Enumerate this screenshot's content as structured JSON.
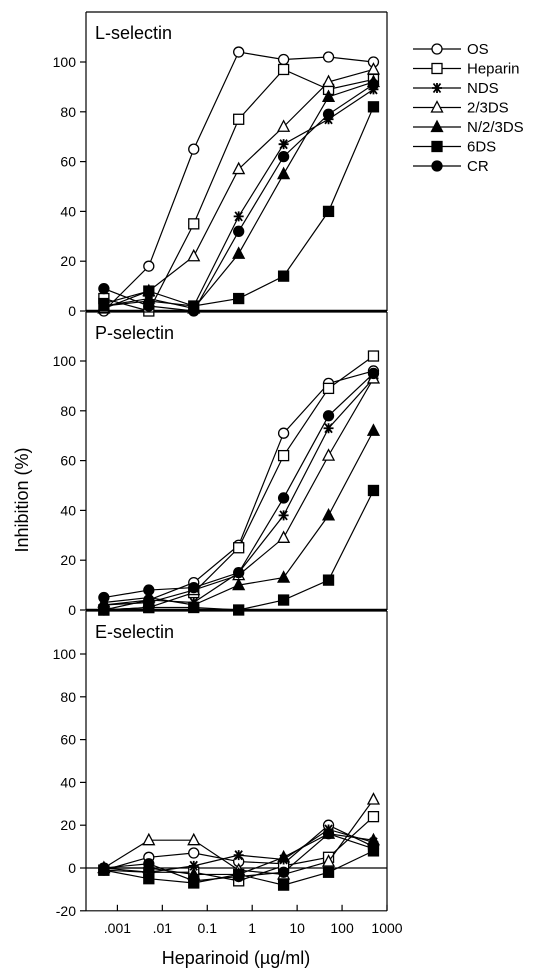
{
  "chart_data": {
    "type": "line",
    "xscale": "log",
    "xlim": [
      0.0002,
      1000
    ],
    "xlabel": "Heparinoid (µg/ml)",
    "ylabel": "Inhibition (%)",
    "xticks": [
      {
        "value": 0.001,
        "label": ".001"
      },
      {
        "value": 0.01,
        "label": ".01"
      },
      {
        "value": 0.1,
        "label": "0.1"
      },
      {
        "value": 1,
        "label": "1"
      },
      {
        "value": 10,
        "label": "10"
      },
      {
        "value": 100,
        "label": "100"
      },
      {
        "value": 1000,
        "label": "1000"
      }
    ],
    "legend": {
      "position": "top-right",
      "entries": [
        {
          "name": "OS",
          "marker": "circle",
          "filled": false
        },
        {
          "name": "Heparin",
          "marker": "square",
          "filled": false
        },
        {
          "name": "NDS",
          "marker": "star",
          "filled": true
        },
        {
          "name": "2/3DS",
          "marker": "triangle",
          "filled": false
        },
        {
          "name": "N/2/3DS",
          "marker": "triangle",
          "filled": true
        },
        {
          "name": "6DS",
          "marker": "square",
          "filled": true
        },
        {
          "name": "CR",
          "marker": "circle",
          "filled": true
        }
      ]
    },
    "panels": [
      {
        "title": "L-selectin",
        "ylim": [
          0,
          110
        ],
        "yticks": [
          0,
          20,
          40,
          60,
          80,
          100
        ],
        "x": [
          0.0005,
          0.005,
          0.05,
          0.5,
          5,
          50,
          500
        ],
        "series": [
          {
            "name": "OS",
            "values": [
              0,
              18,
              65,
              104,
              101,
              102,
              100
            ]
          },
          {
            "name": "Heparin",
            "values": [
              5,
              0,
              35,
              77,
              97,
              89,
              93
            ]
          },
          {
            "name": "NDS",
            "values": [
              2,
              4,
              2,
              38,
              67,
              77,
              89
            ]
          },
          {
            "name": "2/3DS",
            "values": [
              1,
              8,
              22,
              57,
              74,
              92,
              97
            ]
          },
          {
            "name": "N/2/3DS",
            "values": [
              2,
              5,
              1,
              23,
              55,
              86,
              92
            ]
          },
          {
            "name": "6DS",
            "values": [
              3,
              8,
              2,
              5,
              14,
              40,
              82
            ]
          },
          {
            "name": "CR",
            "values": [
              9,
              2,
              0,
              32,
              62,
              79,
              91
            ]
          }
        ]
      },
      {
        "title": "P-selectin",
        "ylim": [
          0,
          110
        ],
        "yticks": [
          0,
          20,
          40,
          60,
          80,
          100
        ],
        "x": [
          0.0005,
          0.005,
          0.05,
          0.5,
          5,
          50,
          500
        ],
        "series": [
          {
            "name": "OS",
            "values": [
              0,
              4,
              11,
              26,
              71,
              91,
              96
            ]
          },
          {
            "name": "Heparin",
            "values": [
              0,
              1,
              7,
              25,
              62,
              89,
              102
            ]
          },
          {
            "name": "NDS",
            "values": [
              2,
              4,
              3,
              15,
              38,
              73,
              93
            ]
          },
          {
            "name": "2/3DS",
            "values": [
              2,
              3,
              8,
              14,
              29,
              62,
              93
            ]
          },
          {
            "name": "N/2/3DS",
            "values": [
              3,
              5,
              2,
              10,
              13,
              38,
              72
            ]
          },
          {
            "name": "6DS",
            "values": [
              0,
              1,
              1,
              0,
              4,
              12,
              48
            ]
          },
          {
            "name": "CR",
            "values": [
              5,
              8,
              9,
              15,
              45,
              78,
              95
            ]
          }
        ]
      },
      {
        "title": "E-selectin",
        "ylim": [
          -20,
          110
        ],
        "yticks": [
          -20,
          0,
          20,
          40,
          60,
          80,
          100
        ],
        "x": [
          0.0005,
          0.005,
          0.05,
          0.5,
          5,
          50,
          500
        ],
        "series": [
          {
            "name": "OS",
            "values": [
              -1,
              5,
              7,
              3,
              2,
              20,
              10
            ]
          },
          {
            "name": "Heparin",
            "values": [
              -1,
              -2,
              -2,
              -6,
              1,
              5,
              24
            ]
          },
          {
            "name": "NDS",
            "values": [
              0,
              -2,
              1,
              6,
              4,
              18,
              12
            ]
          },
          {
            "name": "2/3DS",
            "values": [
              0,
              13,
              13,
              -1,
              -3,
              3,
              32
            ]
          },
          {
            "name": "N/2/3DS",
            "values": [
              0,
              0,
              -3,
              -3,
              5,
              16,
              13
            ]
          },
          {
            "name": "6DS",
            "values": [
              -1,
              -5,
              -7,
              -3,
              -8,
              -2,
              8
            ]
          },
          {
            "name": "CR",
            "values": [
              0,
              2,
              -6,
              -4,
              -2,
              16,
              9
            ]
          }
        ]
      }
    ]
  }
}
